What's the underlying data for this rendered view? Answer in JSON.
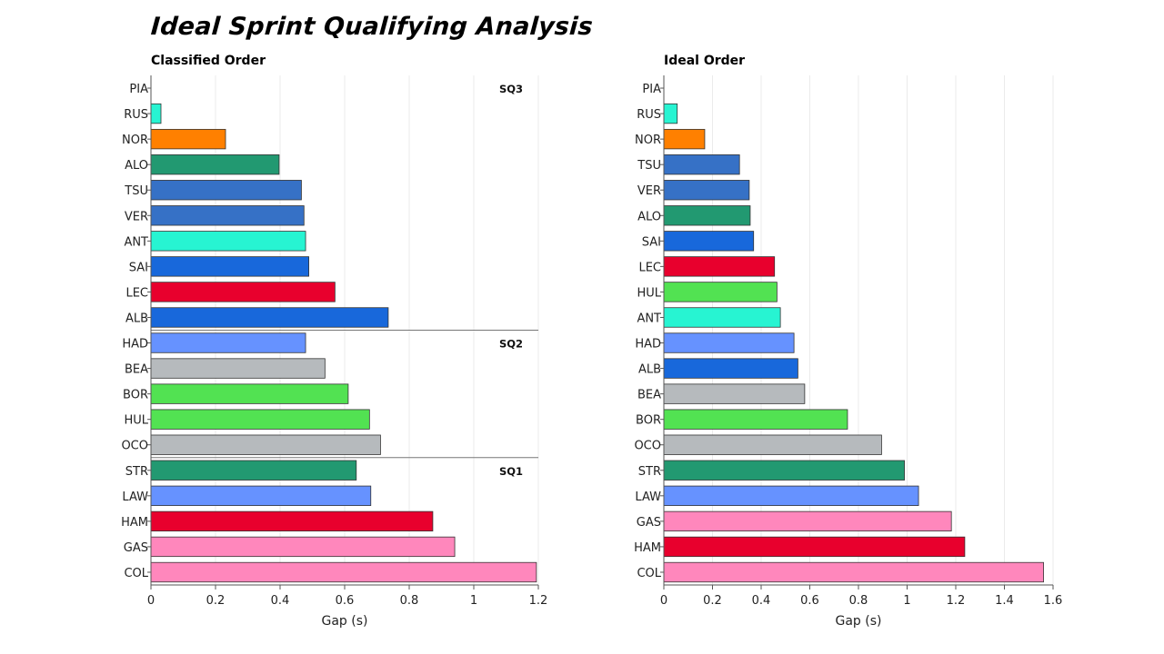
{
  "title": "Ideal Sprint Qualifying Analysis",
  "chart_data": [
    {
      "type": "bar",
      "orientation": "horizontal",
      "title": "Classified Order",
      "xlabel": "Gap (s)",
      "xlim": [
        0,
        1.2
      ],
      "xticks": [
        0,
        0.2,
        0.4,
        0.6,
        0.8,
        1,
        1.2
      ],
      "grid": true,
      "segments": [
        {
          "label": "SQ3",
          "start": 0
        },
        {
          "label": "SQ2",
          "start": 10
        },
        {
          "label": "SQ1",
          "start": 15
        }
      ],
      "categories": [
        "PIA",
        "RUS",
        "NOR",
        "ALO",
        "TSU",
        "VER",
        "ANT",
        "SAI",
        "LEC",
        "ALB",
        "HAD",
        "BEA",
        "BOR",
        "HUL",
        "OCO",
        "STR",
        "LAW",
        "HAM",
        "GAS",
        "COL"
      ],
      "values": [
        0,
        0.031,
        0.231,
        0.397,
        0.466,
        0.474,
        0.479,
        0.489,
        0.57,
        0.735,
        0.479,
        0.539,
        0.611,
        0.677,
        0.711,
        0.636,
        0.681,
        0.873,
        0.941,
        1.194
      ],
      "colors": [
        "#ff8000",
        "#27f4d2",
        "#ff8000",
        "#229971",
        "#3671c6",
        "#3671c6",
        "#27f4d2",
        "#1868db",
        "#e8002d",
        "#1868db",
        "#6692ff",
        "#b6babd",
        "#52e252",
        "#52e252",
        "#b6babd",
        "#229971",
        "#6692ff",
        "#e8002d",
        "#ff87bc",
        "#ff87bc"
      ]
    },
    {
      "type": "bar",
      "orientation": "horizontal",
      "title": "Ideal Order",
      "xlabel": "Gap (s)",
      "xlim": [
        0,
        1.6
      ],
      "xticks": [
        0,
        0.2,
        0.4,
        0.6,
        0.8,
        1,
        1.2,
        1.4,
        1.6
      ],
      "grid": true,
      "segments": [],
      "categories": [
        "PIA",
        "RUS",
        "NOR",
        "TSU",
        "VER",
        "ALO",
        "SAI",
        "LEC",
        "HUL",
        "ANT",
        "HAD",
        "ALB",
        "BEA",
        "BOR",
        "OCO",
        "STR",
        "LAW",
        "GAS",
        "HAM",
        "COL"
      ],
      "values": [
        0,
        0.055,
        0.168,
        0.311,
        0.351,
        0.355,
        0.369,
        0.455,
        0.465,
        0.479,
        0.535,
        0.551,
        0.579,
        0.755,
        0.895,
        0.989,
        1.047,
        1.182,
        1.237,
        1.561
      ],
      "colors": [
        "#ff8000",
        "#27f4d2",
        "#ff8000",
        "#3671c6",
        "#3671c6",
        "#229971",
        "#1868db",
        "#e8002d",
        "#52e252",
        "#27f4d2",
        "#6692ff",
        "#1868db",
        "#b6babd",
        "#52e252",
        "#b6babd",
        "#229971",
        "#6692ff",
        "#ff87bc",
        "#e8002d",
        "#ff87bc"
      ]
    }
  ]
}
